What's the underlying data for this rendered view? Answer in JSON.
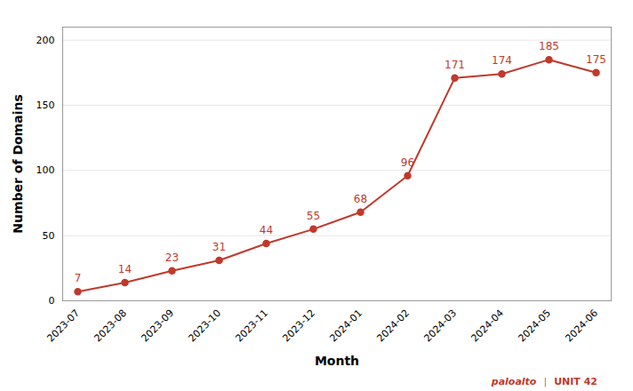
{
  "chart_data": {
    "type": "line",
    "categories": [
      "2023-07",
      "2023-08",
      "2023-09",
      "2023-10",
      "2023-11",
      "2023-12",
      "2024-01",
      "2024-02",
      "2024-03",
      "2024-04",
      "2024-05",
      "2024-06"
    ],
    "values": [
      7,
      14,
      23,
      31,
      44,
      55,
      68,
      96,
      171,
      174,
      185,
      175
    ],
    "color": "#c0392b",
    "marker": "circle",
    "xlabel": "Month",
    "ylabel": "Number of Domains",
    "ylim": [
      0,
      210
    ],
    "yticks": [
      0,
      50,
      100,
      150,
      200
    ],
    "grid": true,
    "data_labels": true,
    "annotations": [
      "paloalto",
      "|",
      "UNIT 42"
    ]
  }
}
